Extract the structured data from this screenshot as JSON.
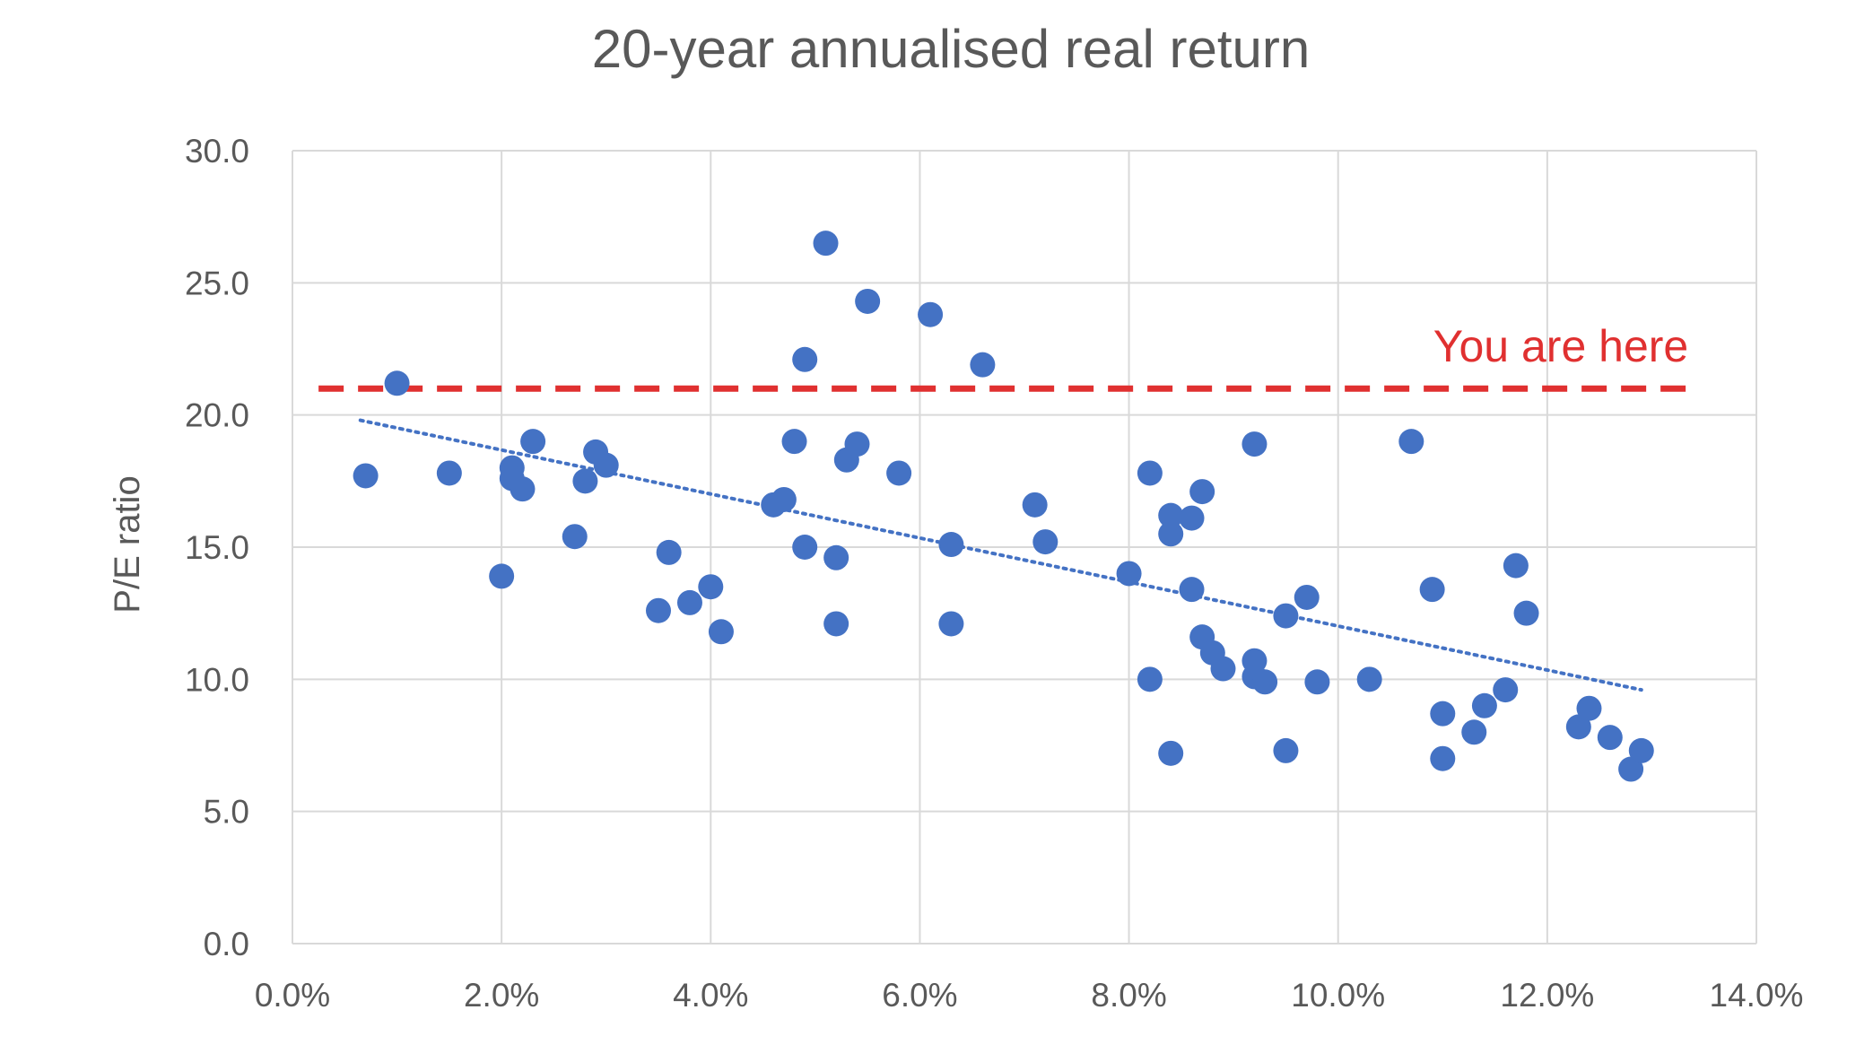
{
  "chart_data": {
    "type": "scatter",
    "title": "20-year annualised real return",
    "xlabel": "",
    "ylabel": "P/E ratio",
    "xlim": [
      0,
      0.14
    ],
    "ylim": [
      0,
      30
    ],
    "x_ticks": [
      0,
      0.02,
      0.04,
      0.06,
      0.08,
      0.1,
      0.12,
      0.14
    ],
    "x_tick_labels": [
      "0.0%",
      "2.0%",
      "4.0%",
      "6.0%",
      "8.0%",
      "10.0%",
      "12.0%",
      "14.0%"
    ],
    "y_ticks": [
      0,
      5,
      10,
      15,
      20,
      25,
      30
    ],
    "y_tick_labels": [
      "0.0",
      "5.0",
      "10.0",
      "15.0",
      "20.0",
      "25.0",
      "30.0"
    ],
    "grid": true,
    "colors": {
      "points": "#4472C4",
      "trendline": "#4472C4",
      "reference": "#E03030",
      "text": "#595959"
    },
    "series": [
      {
        "points": [
          [
            0.007,
            17.7
          ],
          [
            0.01,
            21.2
          ],
          [
            0.015,
            17.8
          ],
          [
            0.02,
            13.9
          ],
          [
            0.021,
            18.0
          ],
          [
            0.021,
            17.6
          ],
          [
            0.022,
            17.2
          ],
          [
            0.023,
            19.0
          ],
          [
            0.027,
            15.4
          ],
          [
            0.028,
            17.5
          ],
          [
            0.029,
            18.6
          ],
          [
            0.03,
            18.1
          ],
          [
            0.035,
            12.6
          ],
          [
            0.036,
            14.8
          ],
          [
            0.038,
            12.9
          ],
          [
            0.04,
            13.5
          ],
          [
            0.041,
            11.8
          ],
          [
            0.046,
            16.6
          ],
          [
            0.047,
            16.8
          ],
          [
            0.048,
            19.0
          ],
          [
            0.049,
            22.1
          ],
          [
            0.049,
            15.0
          ],
          [
            0.051,
            26.5
          ],
          [
            0.052,
            12.1
          ],
          [
            0.052,
            14.6
          ],
          [
            0.053,
            18.3
          ],
          [
            0.054,
            18.9
          ],
          [
            0.055,
            24.3
          ],
          [
            0.058,
            17.8
          ],
          [
            0.061,
            23.8
          ],
          [
            0.063,
            12.1
          ],
          [
            0.063,
            15.1
          ],
          [
            0.066,
            21.9
          ],
          [
            0.071,
            16.6
          ],
          [
            0.072,
            15.2
          ],
          [
            0.08,
            14.0
          ],
          [
            0.082,
            10.0
          ],
          [
            0.082,
            17.8
          ],
          [
            0.084,
            7.2
          ],
          [
            0.084,
            16.2
          ],
          [
            0.084,
            15.5
          ],
          [
            0.086,
            13.4
          ],
          [
            0.086,
            16.1
          ],
          [
            0.087,
            17.1
          ],
          [
            0.087,
            11.6
          ],
          [
            0.088,
            11.0
          ],
          [
            0.089,
            10.4
          ],
          [
            0.092,
            18.9
          ],
          [
            0.092,
            10.1
          ],
          [
            0.092,
            10.7
          ],
          [
            0.093,
            9.9
          ],
          [
            0.095,
            12.4
          ],
          [
            0.095,
            7.3
          ],
          [
            0.097,
            13.1
          ],
          [
            0.098,
            9.9
          ],
          [
            0.103,
            10.0
          ],
          [
            0.107,
            19.0
          ],
          [
            0.109,
            13.4
          ],
          [
            0.11,
            8.7
          ],
          [
            0.11,
            7.0
          ],
          [
            0.113,
            8.0
          ],
          [
            0.114,
            9.0
          ],
          [
            0.116,
            9.6
          ],
          [
            0.117,
            14.3
          ],
          [
            0.118,
            12.5
          ],
          [
            0.123,
            8.2
          ],
          [
            0.124,
            8.9
          ],
          [
            0.126,
            7.8
          ],
          [
            0.128,
            6.6
          ],
          [
            0.129,
            7.3
          ]
        ]
      }
    ],
    "trendline": {
      "style": "dotted",
      "start": [
        0.0065,
        19.8
      ],
      "end": [
        0.129,
        9.6
      ]
    },
    "reference_line": {
      "y": 21.0,
      "x_start": 0.0025,
      "x_end": 0.1335,
      "style": "dashed",
      "label": "You are here"
    }
  }
}
